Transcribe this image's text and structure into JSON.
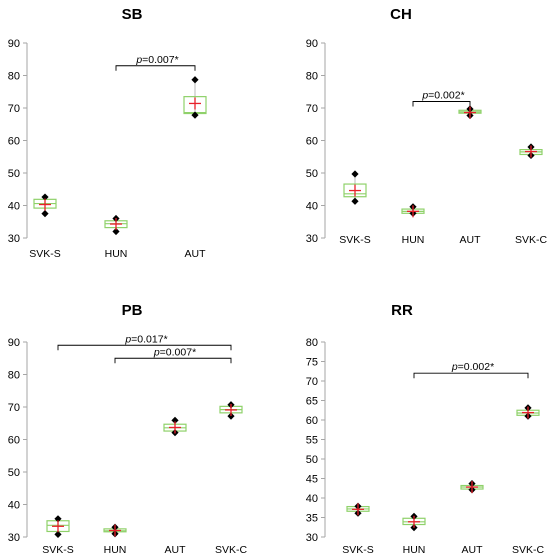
{
  "colors": {
    "box": "#8fd16a",
    "median": "#8fd16a",
    "mean": "#e8202a",
    "whisker": "#b8b8b8",
    "point": "#000000",
    "axis": "#a6a6a6",
    "bracket": "#000000"
  },
  "chart_data": [
    {
      "type": "box",
      "title": "SB",
      "ylim": [
        30,
        90
      ],
      "yticks": [
        "30",
        "40",
        "50",
        "60",
        "70",
        "80",
        "90"
      ],
      "categories": [
        "SVK-S",
        "HUN",
        "AUT"
      ],
      "boxes": [
        {
          "category": "SVK-S",
          "min": 37.5,
          "q1": 39.2,
          "median": 40.6,
          "q3": 41.9,
          "max": 42.6,
          "mean": 40.3,
          "points": [
            37.5,
            42.6
          ]
        },
        {
          "category": "HUN",
          "min": 32.0,
          "q1": 33.2,
          "median": 34.4,
          "q3": 35.3,
          "max": 36.0,
          "mean": 34.3,
          "points": [
            32.0,
            36.0
          ]
        },
        {
          "category": "AUT",
          "min": 67.8,
          "q1": 68.3,
          "median": 68.6,
          "q3": 73.5,
          "max": 78.7,
          "mean": 71.4,
          "points": [
            67.8,
            78.7
          ]
        }
      ],
      "comparisons": [
        {
          "from": "HUN",
          "to": "AUT",
          "p_label": "p",
          "p_text": "=0.007*",
          "y": 83
        }
      ]
    },
    {
      "type": "box",
      "title": "CH",
      "ylim": [
        30,
        90
      ],
      "yticks": [
        "30",
        "40",
        "50",
        "60",
        "70",
        "80",
        "90"
      ],
      "categories": [
        "SVK-S",
        "HUN",
        "AUT",
        "SVK-C"
      ],
      "boxes": [
        {
          "category": "SVK-S",
          "min": 41.3,
          "q1": 42.7,
          "median": 43.6,
          "q3": 46.6,
          "max": 49.7,
          "mean": 44.6,
          "points": [
            41.3,
            49.7
          ]
        },
        {
          "category": "HUN",
          "min": 37.6,
          "q1": 37.6,
          "median": 38.2,
          "q3": 38.9,
          "max": 39.6,
          "mean": 38.2,
          "points": [
            37.6,
            39.6
          ]
        },
        {
          "category": "AUT",
          "min": 67.7,
          "q1": 68.4,
          "median": 68.8,
          "q3": 69.3,
          "max": 69.7,
          "mean": 68.6,
          "points": [
            67.7,
            69.7
          ]
        },
        {
          "category": "SVK-C",
          "min": 55.4,
          "q1": 55.7,
          "median": 56.5,
          "q3": 57.2,
          "max": 58.0,
          "mean": 56.6,
          "points": [
            55.4,
            58.0
          ]
        }
      ],
      "comparisons": [
        {
          "from": "HUN",
          "to": "AUT",
          "p_label": "p",
          "p_text": "=0.002*",
          "y": 72
        }
      ]
    },
    {
      "type": "box",
      "title": "PB",
      "ylim": [
        30,
        90
      ],
      "yticks": [
        "30",
        "40",
        "50",
        "60",
        "70",
        "80",
        "90"
      ],
      "categories": [
        "SVK-S",
        "HUN",
        "AUT",
        "SVK-C"
      ],
      "boxes": [
        {
          "category": "SVK-S",
          "min": 30.8,
          "q1": 31.7,
          "median": 33.6,
          "q3": 35.0,
          "max": 35.6,
          "mean": 33.3,
          "points": [
            30.8,
            35.6
          ]
        },
        {
          "category": "HUN",
          "min": 31.0,
          "q1": 31.6,
          "median": 31.9,
          "q3": 32.5,
          "max": 33.0,
          "mean": 32.0,
          "points": [
            31.0,
            33.0
          ]
        },
        {
          "category": "AUT",
          "min": 62.1,
          "q1": 62.6,
          "median": 63.6,
          "q3": 64.7,
          "max": 65.9,
          "mean": 63.7,
          "points": [
            62.1,
            65.9
          ]
        },
        {
          "category": "SVK-C",
          "min": 67.2,
          "q1": 68.2,
          "median": 69.2,
          "q3": 70.2,
          "max": 70.7,
          "mean": 69.1,
          "points": [
            67.2,
            70.7
          ]
        }
      ],
      "comparisons": [
        {
          "from": "SVK-S",
          "to": "SVK-C",
          "p_label": "p",
          "p_text": "=0.017*",
          "y": 89
        },
        {
          "from": "HUN",
          "to": "SVK-C",
          "p_label": "p",
          "p_text": "=0.007*",
          "y": 85
        }
      ]
    },
    {
      "type": "box",
      "title": "RR",
      "ylim": [
        30,
        80
      ],
      "yticks": [
        "30",
        "35",
        "40",
        "45",
        "50",
        "55",
        "60",
        "65",
        "70",
        "75",
        "80"
      ],
      "categories": [
        "SVK-S",
        "HUN",
        "AUT",
        "SVK-C"
      ],
      "boxes": [
        {
          "category": "SVK-S",
          "min": 36.1,
          "q1": 36.6,
          "median": 37.2,
          "q3": 37.8,
          "max": 37.9,
          "mean": 37.1,
          "points": [
            36.1,
            37.9
          ]
        },
        {
          "category": "HUN",
          "min": 32.4,
          "q1": 33.2,
          "median": 33.9,
          "q3": 34.8,
          "max": 35.3,
          "mean": 33.9,
          "points": [
            32.4,
            35.3
          ]
        },
        {
          "category": "AUT",
          "min": 42.1,
          "q1": 42.3,
          "median": 42.8,
          "q3": 43.2,
          "max": 43.7,
          "mean": 42.8,
          "points": [
            42.1,
            43.7
          ]
        },
        {
          "category": "SVK-C",
          "min": 61.0,
          "q1": 61.2,
          "median": 61.8,
          "q3": 62.5,
          "max": 63.1,
          "mean": 61.9,
          "points": [
            61.0,
            63.1
          ]
        }
      ],
      "comparisons": [
        {
          "from": "HUN",
          "to": "SVK-C",
          "p_label": "p",
          "p_text": "=0.002*",
          "y": 72
        }
      ]
    }
  ]
}
